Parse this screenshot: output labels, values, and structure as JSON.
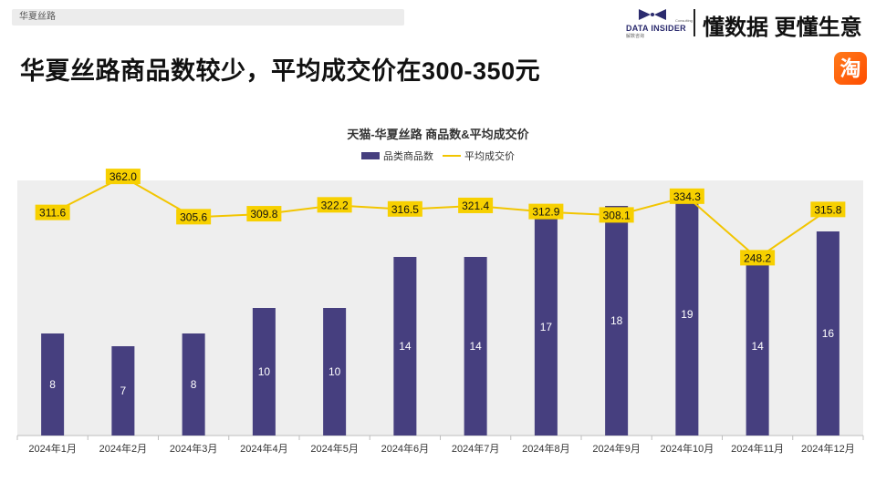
{
  "header": {
    "tag": "华夏丝路",
    "headline": "华夏丝路商品数较少，平均成交价在300-350元",
    "brand_name": "DATA INSIDER",
    "brand_sub": "解数咨询",
    "brand_consult": "Consulting",
    "brand_slogan": "懂数据 更懂生意",
    "platform_icon_char": "淘"
  },
  "colors": {
    "bar": "#463f7f",
    "line": "#f2c500",
    "label_bg": "#f7d000",
    "plot_bg": "#eeeeee"
  },
  "chart_data": {
    "type": "bar",
    "title": "天猫-华夏丝路 商品数&平均成交价",
    "legend": [
      "品类商品数",
      "平均成交价"
    ],
    "categories": [
      "2024年1月",
      "2024年2月",
      "2024年3月",
      "2024年4月",
      "2024年5月",
      "2024年6月",
      "2024年7月",
      "2024年8月",
      "2024年9月",
      "2024年10月",
      "2024年11月",
      "2024年12月"
    ],
    "series": [
      {
        "name": "品类商品数",
        "type": "bar",
        "values": [
          8,
          7,
          8,
          10,
          10,
          14,
          14,
          17,
          18,
          19,
          14,
          16
        ],
        "labels": [
          "8",
          "7",
          "8",
          "10",
          "10",
          "14",
          "14",
          "17",
          "18",
          "19",
          "14",
          "16"
        ]
      },
      {
        "name": "平均成交价",
        "type": "line",
        "values": [
          311.6,
          362.0,
          305.6,
          309.8,
          322.2,
          316.5,
          321.4,
          312.9,
          308.1,
          334.3,
          248.2,
          315.8
        ],
        "labels": [
          "311.6",
          "362.0",
          "305.6",
          "309.8",
          "322.2",
          "316.5",
          "321.4",
          "312.9",
          "308.1",
          "334.3",
          "248.2",
          "315.8"
        ]
      }
    ],
    "bar_ylim": [
      0,
      19
    ],
    "line_ylim": [
      0,
      380
    ]
  }
}
